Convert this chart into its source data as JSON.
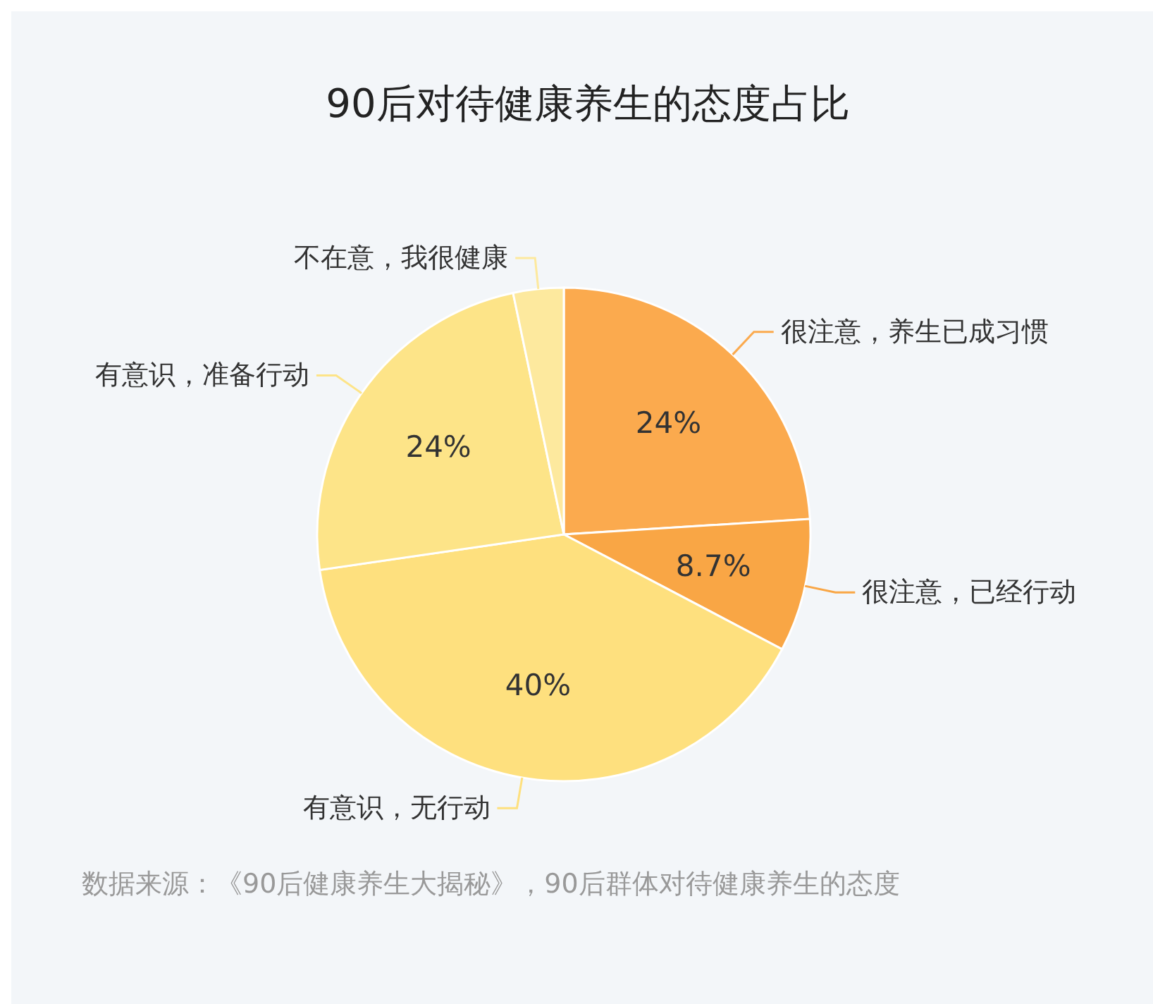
{
  "chart_data": {
    "type": "pie",
    "title": "90后对待健康养生的态度占比",
    "categories": [
      "很注意，养生已成习惯",
      "很注意，已经行动",
      "有意识，无行动",
      "有意识，准备行动",
      "不在意，我很健康"
    ],
    "values": [
      24,
      8.7,
      40,
      24,
      3.3
    ],
    "value_labels": [
      "24%",
      "8.7%",
      "40%",
      "24%",
      null
    ],
    "colors": [
      "#fbaa4e",
      "#f9a645",
      "#fee07e",
      "#fde488",
      "#fde99e"
    ],
    "annotations": [
      "数据来源：《90后健康养生大揭秘》，90后群体对待健康养生的态度"
    ]
  }
}
